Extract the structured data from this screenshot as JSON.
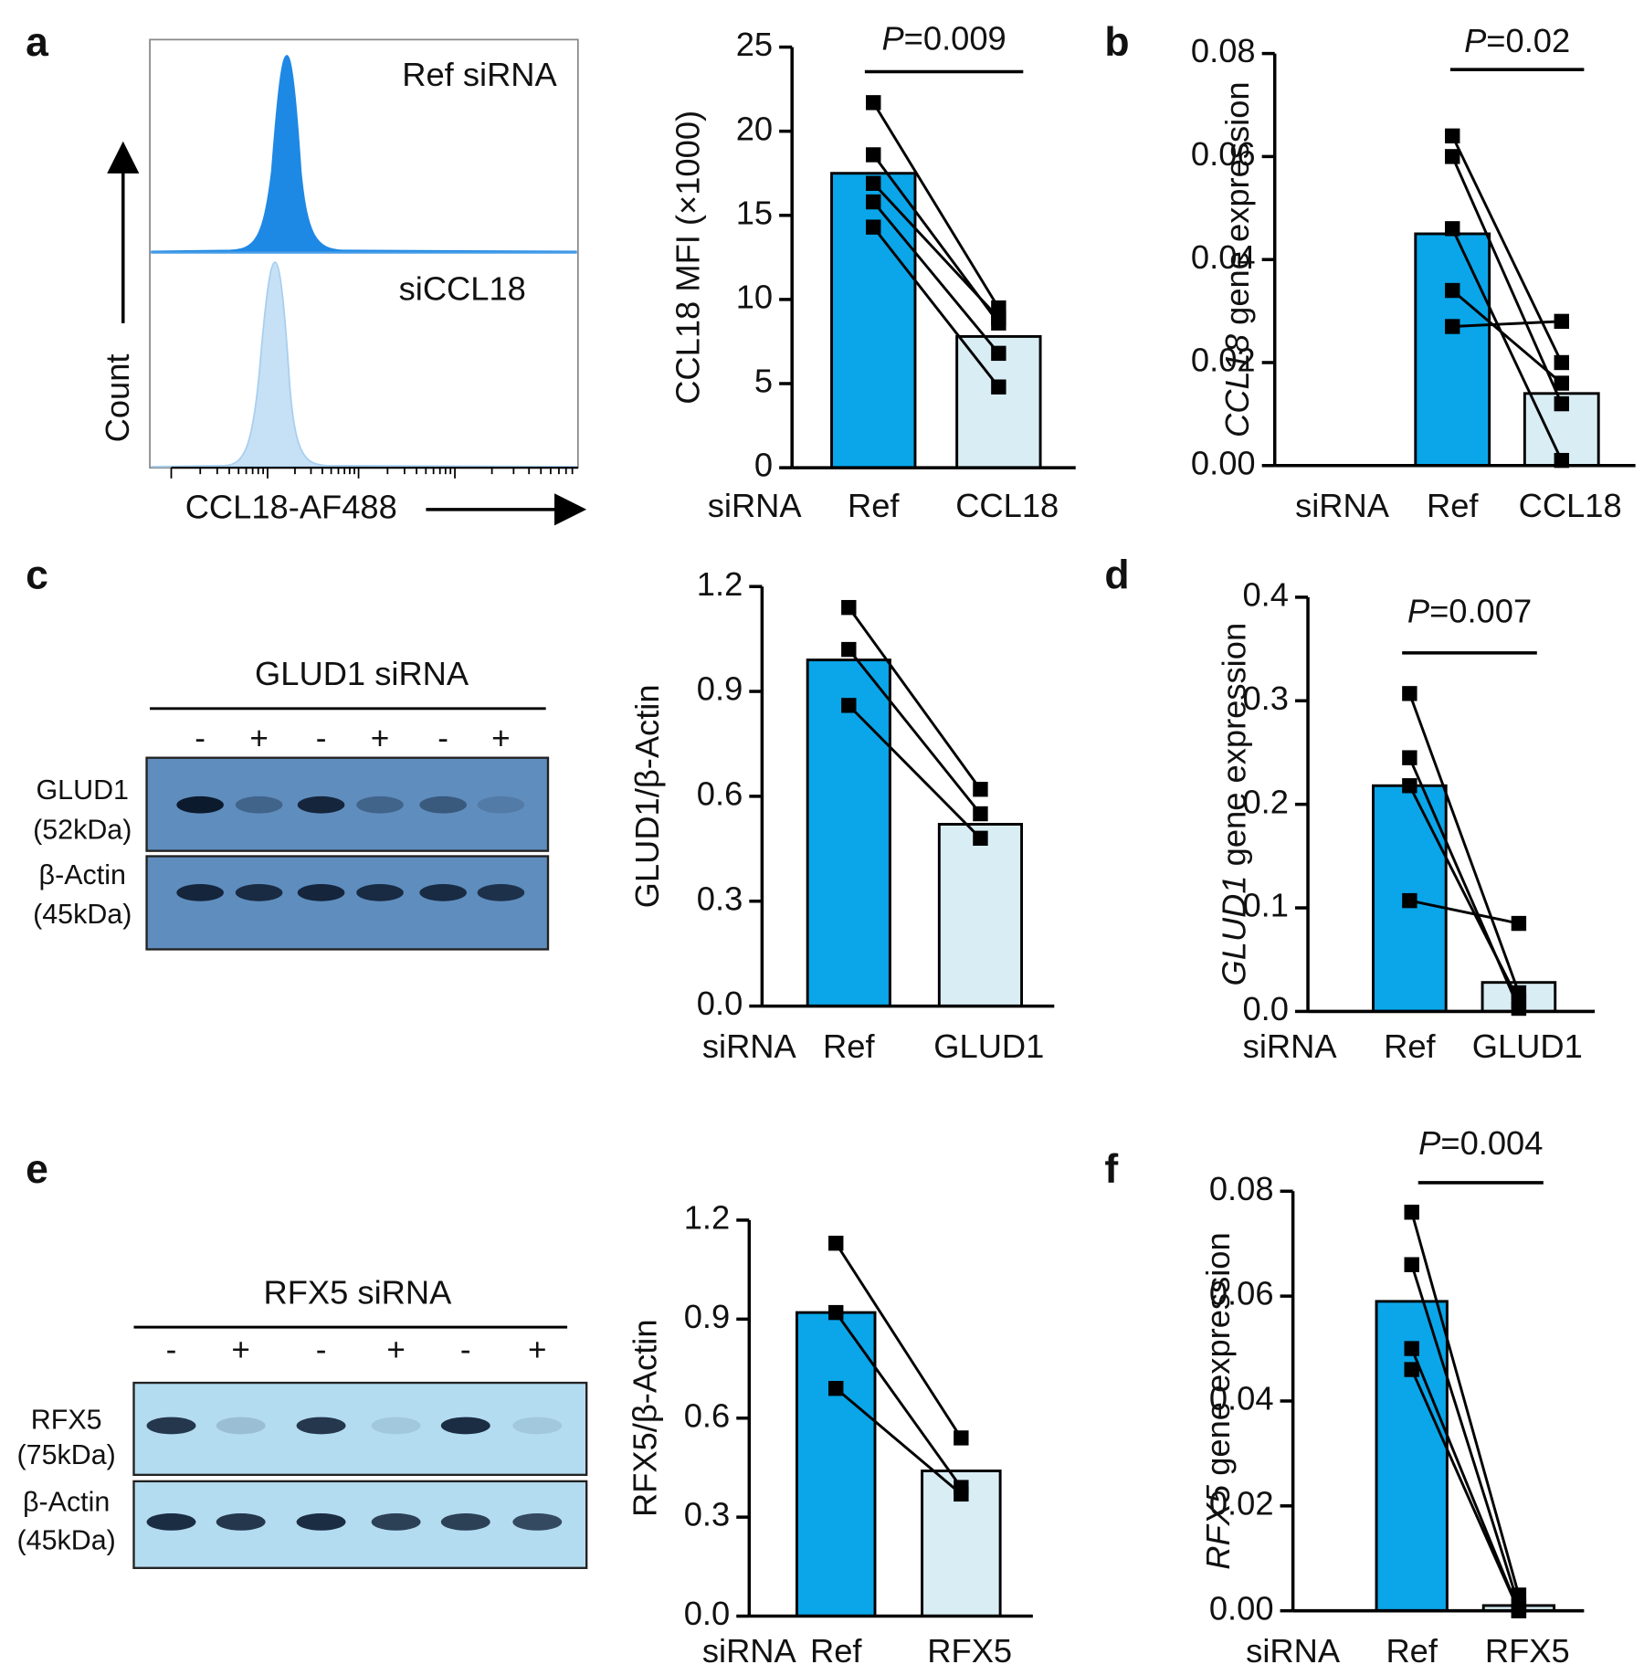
{
  "panel_labels": [
    "a",
    "b",
    "c",
    "d",
    "e",
    "f"
  ],
  "flow": {
    "ylabel": "Count",
    "xlabel": "CCL18-AF488",
    "samples": [
      "Ref siRNA",
      "siCCL18"
    ]
  },
  "blots": [
    {
      "title": "GLUD1 siRNA",
      "lanes": [
        "-",
        "+",
        "-",
        "+",
        "-",
        "+"
      ],
      "rows": [
        {
          "label": "GLUD1",
          "size": "(52kDa)"
        },
        {
          "label": "β-Actin",
          "size": "(45kDa)"
        }
      ]
    },
    {
      "title": "RFX5 siRNA",
      "lanes": [
        "-",
        "+",
        "-",
        "+",
        "-",
        "+"
      ],
      "rows": [
        {
          "label": "RFX5",
          "size": "(75kDa)"
        },
        {
          "label": "β-Actin",
          "size": "(45kDa)"
        }
      ]
    }
  ],
  "chart_data": [
    {
      "type": "bar",
      "x_prefix": "siRNA",
      "categories": [
        "Ref",
        "CCL18"
      ],
      "values": [
        17.5,
        7.8
      ],
      "colors": [
        "#0aa6e9",
        "#d9edf5"
      ],
      "series": [
        {
          "values": [
            21.7,
            9.5
          ]
        },
        {
          "values": [
            18.6,
            8.6
          ]
        },
        {
          "values": [
            16.9,
            8.9
          ]
        },
        {
          "values": [
            15.8,
            6.8
          ]
        },
        {
          "values": [
            14.3,
            4.8
          ]
        }
      ],
      "ylabel": "CCL18 MFI (×1000)",
      "ylim": [
        0,
        25
      ],
      "yticks": [
        0,
        5,
        10,
        15,
        20,
        25
      ],
      "annotation": [
        "P",
        "=0.009"
      ]
    },
    {
      "type": "bar",
      "x_prefix": "siRNA",
      "categories": [
        "Ref",
        "CCL18"
      ],
      "values": [
        0.045,
        0.014
      ],
      "colors": [
        "#0aa6e9",
        "#d9edf5"
      ],
      "series": [
        {
          "values": [
            0.064,
            0.02
          ]
        },
        {
          "values": [
            0.06,
            0.012
          ]
        },
        {
          "values": [
            0.046,
            0.001
          ]
        },
        {
          "values": [
            0.034,
            0.016
          ]
        },
        {
          "values": [
            0.027,
            0.028
          ]
        }
      ],
      "ylabel": [
        "CCL18",
        " gene expression"
      ],
      "ylim": [
        0,
        0.08
      ],
      "yticks": [
        {
          "value": 0,
          "label": "0.00"
        },
        0.02,
        0.04,
        0.06,
        0.08
      ],
      "annotation": [
        "P",
        "=0.02"
      ]
    },
    {
      "type": "bar",
      "x_prefix": "siRNA",
      "categories": [
        "Ref",
        "GLUD1"
      ],
      "values": [
        0.99,
        0.52
      ],
      "colors": [
        "#0aa6e9",
        "#d9edf5"
      ],
      "series": [
        {
          "values": [
            1.14,
            0.62
          ]
        },
        {
          "values": [
            1.02,
            0.55
          ]
        },
        {
          "values": [
            0.86,
            0.48
          ]
        }
      ],
      "ylabel": "GLUD1/β-Actin",
      "ylim": [
        0,
        1.2
      ],
      "yticks": [
        {
          "value": 0,
          "label": "0.0"
        },
        0.3,
        0.6,
        0.9,
        1.2
      ]
    },
    {
      "type": "bar",
      "x_prefix": "siRNA",
      "categories": [
        "Ref",
        "GLUD1"
      ],
      "values": [
        0.218,
        0.028
      ],
      "colors": [
        "#0aa6e9",
        "#d9edf5"
      ],
      "series": [
        {
          "values": [
            0.307,
            0.018
          ]
        },
        {
          "values": [
            0.245,
            0.003
          ]
        },
        {
          "values": [
            0.218,
            0.01
          ]
        },
        {
          "values": [
            0.107,
            0.085
          ]
        }
      ],
      "ylabel": [
        "GLUD1",
        " gene expression"
      ],
      "ylim": [
        0,
        0.4
      ],
      "yticks": [
        {
          "value": 0,
          "label": "0.0"
        },
        0.1,
        0.2,
        0.3,
        0.4
      ],
      "annotation": [
        "P",
        "=0.007"
      ]
    },
    {
      "type": "bar",
      "x_prefix": "siRNA",
      "categories": [
        "Ref",
        "RFX5"
      ],
      "values": [
        0.92,
        0.44
      ],
      "colors": [
        "#0aa6e9",
        "#d9edf5"
      ],
      "series": [
        {
          "values": [
            1.13,
            0.54
          ]
        },
        {
          "values": [
            0.92,
            0.39
          ]
        },
        {
          "values": [
            0.69,
            0.37
          ]
        }
      ],
      "ylabel": "RFX5/β-Actin",
      "ylim": [
        0,
        1.2
      ],
      "yticks": [
        {
          "value": 0,
          "label": "0.0"
        },
        0.3,
        0.6,
        0.9,
        1.2
      ]
    },
    {
      "type": "bar",
      "x_prefix": "siRNA",
      "categories": [
        "Ref",
        "RFX5"
      ],
      "values": [
        0.059,
        0.001
      ],
      "colors": [
        "#0aa6e9",
        "#d9edf5"
      ],
      "series": [
        {
          "values": [
            0.076,
            0.003
          ]
        },
        {
          "values": [
            0.066,
            0.001
          ]
        },
        {
          "values": [
            0.05,
            0
          ]
        },
        {
          "values": [
            0.046,
            0
          ]
        }
      ],
      "ylabel": [
        "RFX5",
        " gene expression"
      ],
      "ylim": [
        0,
        0.08
      ],
      "yticks": [
        {
          "value": 0,
          "label": "0.00"
        },
        0.02,
        0.04,
        0.06,
        0.08
      ],
      "annotation": [
        "P",
        "=0.004"
      ]
    }
  ]
}
